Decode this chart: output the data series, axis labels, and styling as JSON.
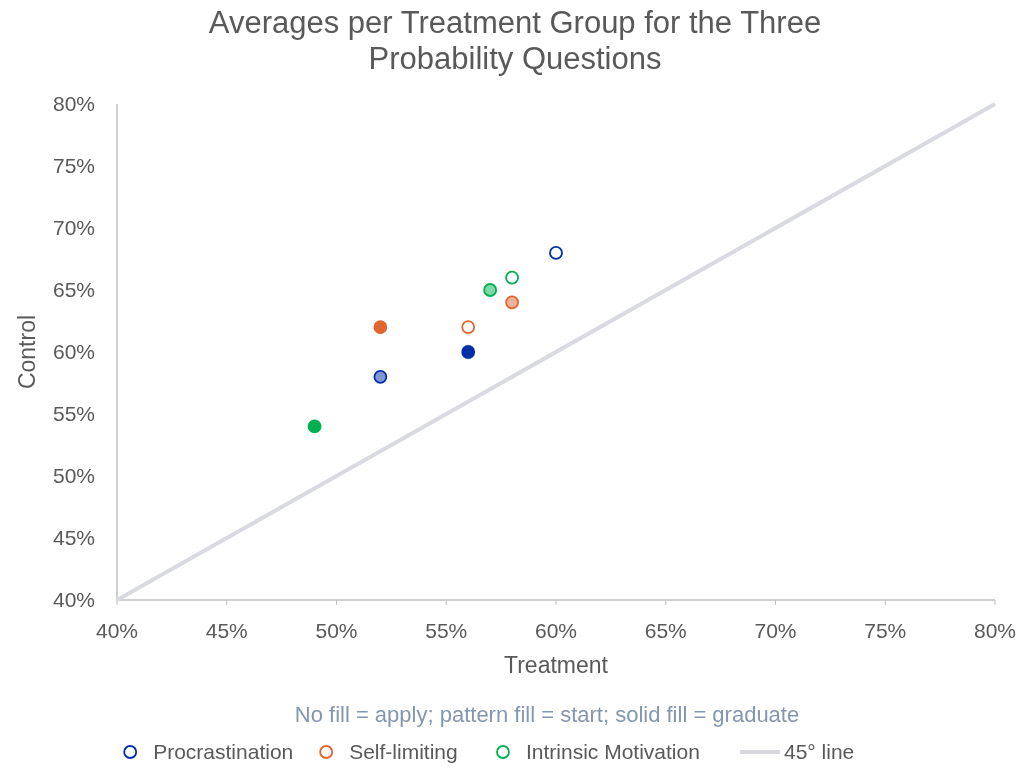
{
  "chart_data": {
    "type": "scatter",
    "title": "Averages per Treatment Group for the Three Probability Questions",
    "xlabel": "Treatment",
    "ylabel": "Control",
    "xlim": [
      40,
      80
    ],
    "ylim": [
      40,
      80
    ],
    "xticks": [
      {
        "value": 40,
        "label": "40%"
      },
      {
        "value": 45,
        "label": "45%"
      },
      {
        "value": 50,
        "label": "50%"
      },
      {
        "value": 55,
        "label": "55%"
      },
      {
        "value": 60,
        "label": "60%"
      },
      {
        "value": 65,
        "label": "65%"
      },
      {
        "value": 70,
        "label": "70%"
      },
      {
        "value": 75,
        "label": "75%"
      },
      {
        "value": 80,
        "label": "80%"
      }
    ],
    "yticks": [
      {
        "value": 40,
        "label": "40%"
      },
      {
        "value": 45,
        "label": "45%"
      },
      {
        "value": 50,
        "label": "50%"
      },
      {
        "value": 55,
        "label": "55%"
      },
      {
        "value": 60,
        "label": "60%"
      },
      {
        "value": 65,
        "label": "65%"
      },
      {
        "value": 70,
        "label": "70%"
      },
      {
        "value": 75,
        "label": "75%"
      },
      {
        "value": 80,
        "label": "80%"
      }
    ],
    "series": [
      {
        "name": "Procrastination",
        "color": "#002fa7",
        "x": [
          60,
          52,
          56
        ],
        "values": [
          68,
          58,
          60
        ],
        "colors": [
          "#ffffff",
          "#8097d3",
          "#002fa7"
        ],
        "marker": "circle"
      },
      {
        "name": "Self-limiting",
        "color": "#e2652f",
        "x": [
          56,
          58,
          52
        ],
        "values": [
          62,
          64,
          62
        ],
        "colors": [
          "#ffffff",
          "#f0b297",
          "#e2652f"
        ],
        "marker": "circle"
      },
      {
        "name": "Intrinsic Motivation",
        "color": "#00b050",
        "x": [
          58,
          57,
          49
        ],
        "values": [
          66,
          65,
          54
        ],
        "colors": [
          "#ffffff",
          "#80d8a8",
          "#00b050"
        ],
        "marker": "circle"
      },
      {
        "name": "45° line",
        "type": "line",
        "color": "#d9dadf",
        "x": [
          40,
          80
        ],
        "values": [
          40,
          80
        ]
      }
    ],
    "annotations": [
      "No fill = apply; pattern fill = start; solid fill = graduate"
    ],
    "grid": false,
    "legend": "bottom"
  }
}
